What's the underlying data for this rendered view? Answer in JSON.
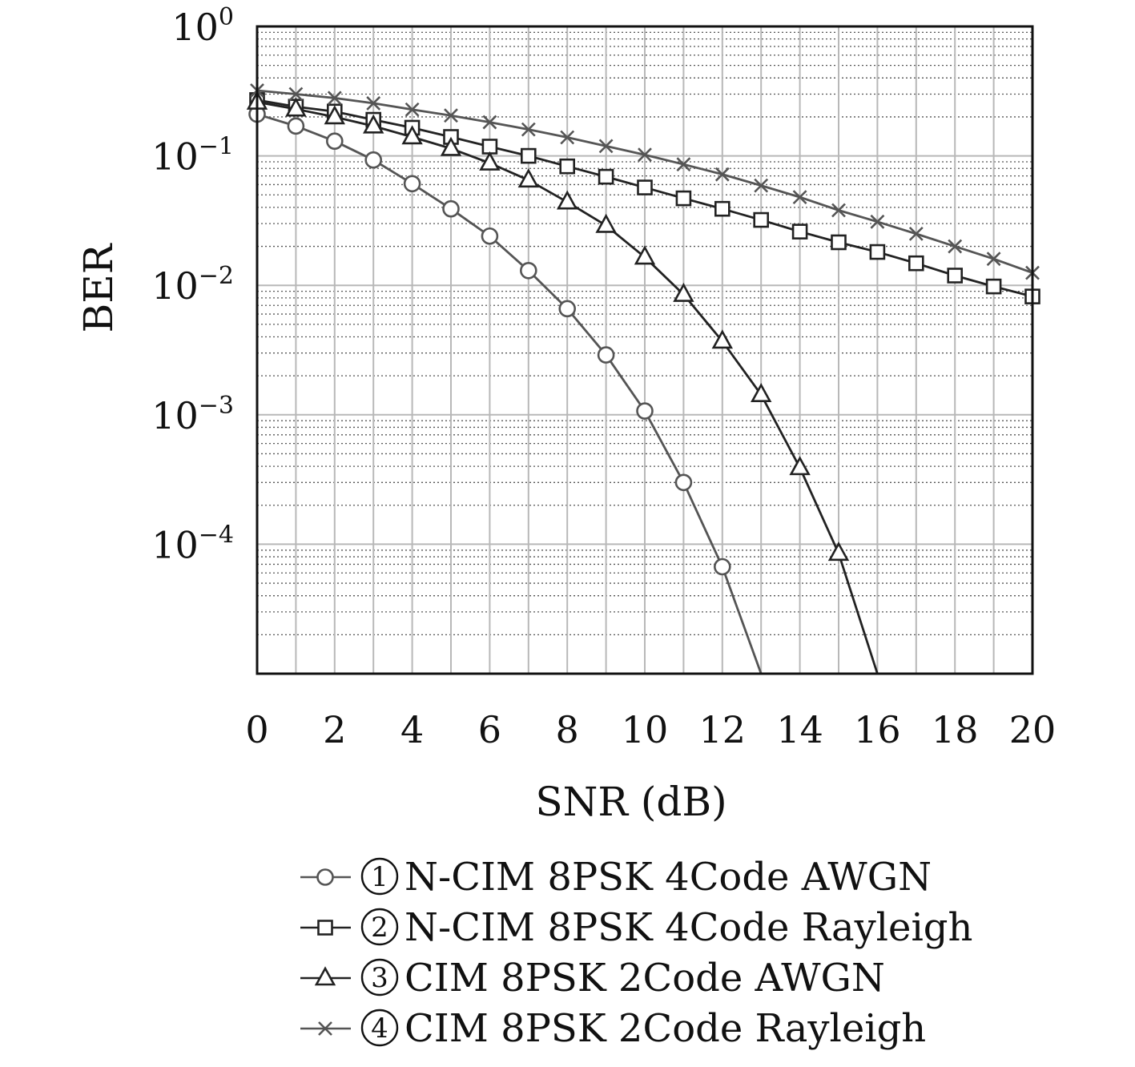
{
  "chart_data": {
    "type": "line",
    "title": "",
    "xlabel": "SNR (dB)",
    "ylabel": "BER",
    "x_scale": "linear",
    "y_scale": "log",
    "xlim": [
      0,
      20
    ],
    "ylim": [
      1e-05,
      1
    ],
    "x_ticks": [
      "0",
      "2",
      "4",
      "6",
      "8",
      "10",
      "12",
      "14",
      "16",
      "18",
      "20"
    ],
    "y_ticks": [
      {
        "base": "10",
        "exp": "0",
        "value": 1
      },
      {
        "base": "10",
        "exp": "−1",
        "value": 0.1
      },
      {
        "base": "10",
        "exp": "−2",
        "value": 0.01
      },
      {
        "base": "10",
        "exp": "−3",
        "value": 0.001
      },
      {
        "base": "10",
        "exp": "−4",
        "value": 0.0001
      }
    ],
    "grid": true,
    "legend_position": "bottom",
    "series": [
      {
        "marker_label": "1",
        "name": "N-CIM 8PSK 4Code AWGN",
        "marker": "circle",
        "color": "#555555",
        "x": [
          0,
          1,
          2,
          3,
          4,
          5,
          6,
          7,
          8,
          9,
          10,
          11,
          12,
          13
        ],
        "y": [
          0.21,
          0.17,
          0.13,
          0.093,
          0.061,
          0.039,
          0.024,
          0.013,
          0.0066,
          0.0029,
          0.00107,
          0.0003,
          6.7e-05,
          1e-05
        ],
        "marker_count": 13
      },
      {
        "marker_label": "2",
        "name": "N-CIM 8PSK 4Code Rayleigh",
        "marker": "square",
        "color": "#222222",
        "x": [
          0,
          1,
          2,
          3,
          4,
          5,
          6,
          7,
          8,
          9,
          10,
          11,
          12,
          13,
          14,
          15,
          16,
          17,
          18,
          19,
          20
        ],
        "y": [
          0.27,
          0.24,
          0.22,
          0.19,
          0.165,
          0.14,
          0.118,
          0.1,
          0.083,
          0.069,
          0.057,
          0.047,
          0.039,
          0.032,
          0.026,
          0.0215,
          0.0181,
          0.0148,
          0.0119,
          0.0098,
          0.0082
        ],
        "marker_count": 21
      },
      {
        "marker_label": "3",
        "name": "CIM 8PSK 2Code AWGN",
        "marker": "triangle",
        "color": "#222222",
        "x": [
          0,
          1,
          2,
          3,
          4,
          5,
          6,
          7,
          8,
          9,
          10,
          11,
          12,
          13,
          14,
          15,
          16
        ],
        "y": [
          0.26,
          0.23,
          0.2,
          0.17,
          0.14,
          0.114,
          0.088,
          0.065,
          0.044,
          0.029,
          0.0165,
          0.0085,
          0.0037,
          0.00143,
          0.00039,
          8.5e-05,
          1e-05
        ],
        "marker_count": 16
      },
      {
        "marker_label": "4",
        "name": "CIM 8PSK 2Code Rayleigh",
        "marker": "x",
        "color": "#555555",
        "x": [
          0,
          1,
          2,
          3,
          4,
          5,
          6,
          7,
          8,
          9,
          10,
          11,
          12,
          13,
          14,
          15,
          16,
          17,
          18,
          19,
          20
        ],
        "y": [
          0.32,
          0.3,
          0.28,
          0.255,
          0.228,
          0.205,
          0.182,
          0.16,
          0.139,
          0.119,
          0.102,
          0.086,
          0.072,
          0.059,
          0.048,
          0.038,
          0.031,
          0.025,
          0.02,
          0.016,
          0.0125
        ],
        "marker_count": 21
      }
    ]
  }
}
